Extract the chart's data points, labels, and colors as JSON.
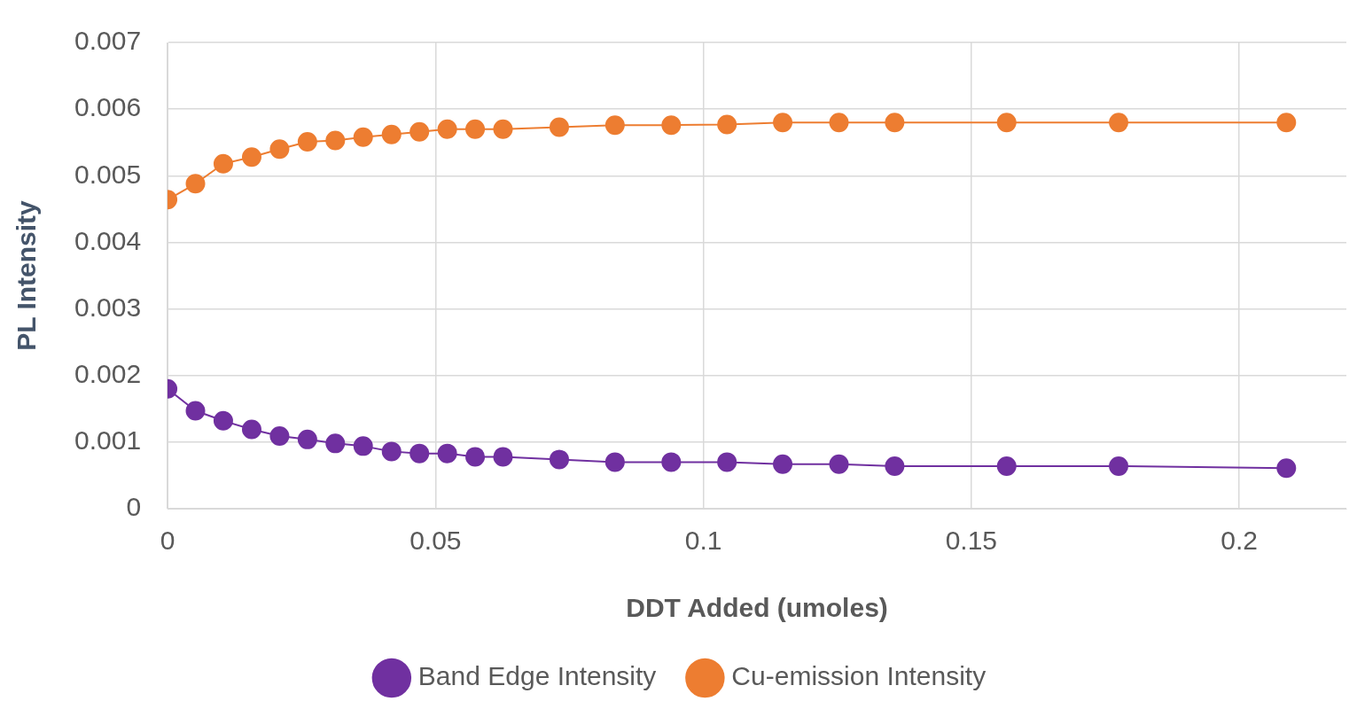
{
  "chart_data": {
    "type": "line",
    "xlabel": "DDT Added (umoles)",
    "ylabel": "PL Intensity",
    "x": [
      0,
      0.0052,
      0.0104,
      0.0157,
      0.0209,
      0.0261,
      0.0313,
      0.0365,
      0.0418,
      0.047,
      0.0522,
      0.0574,
      0.0626,
      0.0731,
      0.0835,
      0.094,
      0.1044,
      0.1148,
      0.1253,
      0.1357,
      0.1566,
      0.1775,
      0.2088
    ],
    "series": [
      {
        "name": "Band Edge Intensity",
        "color": "#7030a0",
        "values": [
          0.0018,
          0.00147,
          0.00132,
          0.00119,
          0.00109,
          0.00104,
          0.00098,
          0.00094,
          0.00086,
          0.00083,
          0.00083,
          0.00078,
          0.00078,
          0.00074,
          0.0007,
          0.0007,
          0.0007,
          0.00067,
          0.00067,
          0.00064,
          0.00064,
          0.00064,
          0.00061
        ]
      },
      {
        "name": "Cu-emission Intensity",
        "color": "#ed7d31",
        "values": [
          0.00464,
          0.00488,
          0.00518,
          0.00528,
          0.0054,
          0.00551,
          0.00553,
          0.00558,
          0.00562,
          0.00566,
          0.0057,
          0.0057,
          0.0057,
          0.00573,
          0.00576,
          0.00576,
          0.00577,
          0.0058,
          0.0058,
          0.0058,
          0.0058,
          0.0058,
          0.0058
        ]
      }
    ],
    "xlim": [
      0,
      0.22
    ],
    "xticks": [
      0,
      0.05,
      0.1,
      0.15,
      0.2
    ],
    "ylim": [
      0,
      0.007
    ],
    "yticks": [
      0,
      0.001,
      0.002,
      0.003,
      0.004,
      0.005,
      0.006,
      0.007
    ],
    "grid": true,
    "legend": "bottom",
    "marker": "circle",
    "line_style": "solid"
  }
}
